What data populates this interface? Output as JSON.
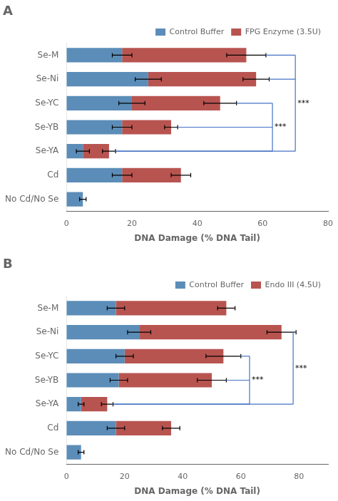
{
  "chart_data": [
    {
      "type": "bar",
      "title": "A",
      "orientation": "horizontal",
      "stacked": true,
      "grid": false,
      "legend": "upper right",
      "categories": [
        "Se-M",
        "Se-Ni",
        "Se-YC",
        "Se-YB",
        "Se-YA",
        "Cd",
        "No Cd/No Se"
      ],
      "series": [
        {
          "name": "Control Buffer",
          "color": "#5B8DB8",
          "values": [
            17,
            25,
            20,
            17,
            5,
            17,
            5
          ],
          "errors": [
            3,
            4,
            4,
            3,
            2,
            3,
            1
          ]
        },
        {
          "name": "FPG Enzyme (3.5U)",
          "color": "#B85450",
          "values": [
            38,
            33,
            27,
            15,
            8,
            18,
            0
          ],
          "errors": [
            6,
            4,
            5,
            2,
            2,
            3,
            0
          ]
        }
      ],
      "xlabel": "DNA Damage (% DNA Tail)",
      "xlim": [
        0,
        80
      ],
      "xticks": [
        0,
        20,
        40,
        60,
        80
      ],
      "annotations": [
        {
          "text": "***",
          "x": 63,
          "categories": [
            "Se-YC",
            "Se-YB",
            "Se-YA"
          ],
          "color": "#4472C4"
        },
        {
          "text": "***",
          "x": 70,
          "categories": [
            "Se-M",
            "Se-Ni",
            "Se-YA"
          ],
          "color": "#4472C4"
        }
      ]
    },
    {
      "type": "bar",
      "title": "B",
      "orientation": "horizontal",
      "stacked": true,
      "grid": false,
      "legend": "upper right",
      "categories": [
        "Se-M",
        "Se-Ni",
        "Se-YC",
        "Se-YB",
        "Se-YA",
        "Cd",
        "No Cd/No Se"
      ],
      "series": [
        {
          "name": "Control Buffer",
          "color": "#5B8DB8",
          "values": [
            17,
            25,
            20,
            18,
            5,
            17,
            5
          ],
          "errors": [
            3,
            4,
            3,
            3,
            1,
            3,
            1
          ]
        },
        {
          "name": "Endo III (4.5U)",
          "color": "#B85450",
          "values": [
            38,
            49,
            34,
            32,
            9,
            19,
            0
          ],
          "errors": [
            3,
            5,
            6,
            5,
            2,
            3,
            0
          ]
        }
      ],
      "xlabel": "DNA Damage (% DNA Tail)",
      "xlim": [
        0,
        90
      ],
      "xticks": [
        0,
        20,
        40,
        60,
        80
      ],
      "annotations": [
        {
          "text": "***",
          "x": 63,
          "categories": [
            "Se-YC",
            "Se-YB",
            "Se-YA"
          ],
          "color": "#4472C4"
        },
        {
          "text": "***",
          "x": 78,
          "categories": [
            "Se-Ni",
            "Se-YA"
          ],
          "color": "#4472C4"
        }
      ]
    }
  ]
}
